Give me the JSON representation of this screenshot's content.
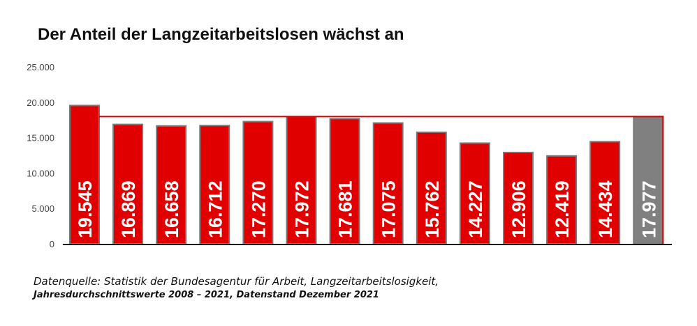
{
  "title": "Der Anteil der Langzeitarbeitslosen wächst an",
  "source": {
    "line1": "Datenquelle: Statistik der Bundesagentur für Arbeit, Langzeitarbeitslosigkeit,",
    "line2": "Jahresdurchschnittswerte 2008 – 2021, Datenstand Dezember 2021"
  },
  "chart_data": {
    "type": "bar",
    "title": "Der Anteil der Langzeitarbeitslosen wächst an",
    "xlabel": "",
    "ylabel": "",
    "ylim": [
      0,
      25000
    ],
    "y_ticks": [
      "0",
      "5.000",
      "10.000",
      "15.000",
      "20.000",
      "25.000"
    ],
    "y_tick_values": [
      0,
      5000,
      10000,
      15000,
      20000,
      25000
    ],
    "values": [
      19545,
      16869,
      16658,
      16712,
      17270,
      17972,
      17681,
      17075,
      15762,
      14227,
      12906,
      12419,
      14434,
      17977
    ],
    "value_labels": [
      "19.545",
      "16.869",
      "16.658",
      "16.712",
      "17.270",
      "17.972",
      "17.681",
      "17.075",
      "15.762",
      "14.227",
      "12.906",
      "12.419",
      "14.434",
      "17.977"
    ],
    "bar_colors": [
      "#e10000",
      "#e10000",
      "#e10000",
      "#e10000",
      "#e10000",
      "#e10000",
      "#e10000",
      "#e10000",
      "#e10000",
      "#e10000",
      "#e10000",
      "#e10000",
      "#e10000",
      "#808080"
    ],
    "reference_line": {
      "value": 17977,
      "color": "#d40000"
    },
    "grid": false,
    "legend": "none"
  }
}
